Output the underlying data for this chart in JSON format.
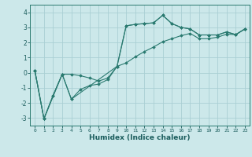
{
  "xlabel": "Humidex (Indice chaleur)",
  "xlim": [
    -0.5,
    23.5
  ],
  "ylim": [
    -3.5,
    4.5
  ],
  "yticks": [
    -3,
    -2,
    -1,
    0,
    1,
    2,
    3,
    4
  ],
  "xticks": [
    0,
    1,
    2,
    3,
    4,
    5,
    6,
    7,
    8,
    9,
    10,
    11,
    12,
    13,
    14,
    15,
    16,
    17,
    18,
    19,
    20,
    21,
    22,
    23
  ],
  "bg_color": "#cce8ea",
  "line_color": "#2a7a70",
  "grid_color": "#aacfd4",
  "line1_x": [
    0,
    1,
    2,
    3,
    4,
    5,
    6,
    7,
    8,
    9,
    10,
    11,
    12,
    13,
    14,
    15,
    16,
    17,
    18,
    19,
    20,
    21,
    22,
    23
  ],
  "line1_y": [
    0.15,
    -3.05,
    -1.5,
    -0.1,
    -1.75,
    -1.1,
    -0.85,
    -0.75,
    -0.45,
    0.42,
    3.1,
    3.2,
    3.25,
    3.3,
    3.8,
    3.25,
    3.0,
    2.9,
    2.5,
    2.5,
    2.5,
    2.7,
    2.52,
    2.9
  ],
  "line2_x": [
    0,
    1,
    2,
    3,
    4,
    5,
    6,
    7,
    8,
    9,
    10,
    11,
    12,
    13,
    14,
    15,
    16,
    17,
    18,
    19,
    20,
    21,
    22,
    23
  ],
  "line2_y": [
    0.15,
    -3.05,
    -1.5,
    -0.1,
    -0.1,
    -0.2,
    -0.35,
    -0.55,
    -0.35,
    0.42,
    0.65,
    1.05,
    1.4,
    1.7,
    2.05,
    2.25,
    2.45,
    2.6,
    2.25,
    2.25,
    2.35,
    2.55,
    2.52,
    2.9
  ],
  "line3_x": [
    0,
    1,
    3,
    4,
    9,
    10,
    11,
    12,
    13,
    14,
    15,
    16,
    17,
    18,
    19,
    20,
    21,
    22,
    23
  ],
  "line3_y": [
    0.15,
    -3.05,
    -0.1,
    -1.75,
    0.42,
    3.1,
    3.2,
    3.25,
    3.3,
    3.8,
    3.25,
    3.0,
    2.9,
    2.5,
    2.5,
    2.5,
    2.7,
    2.52,
    2.9
  ]
}
